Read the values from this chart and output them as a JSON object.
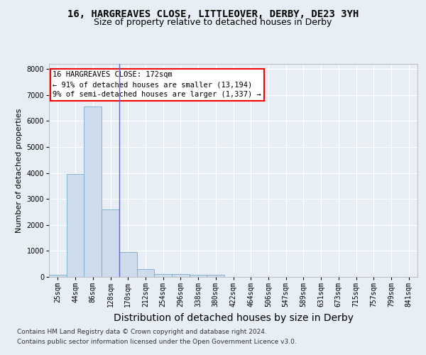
{
  "title": "16, HARGREAVES CLOSE, LITTLEOVER, DERBY, DE23 3YH",
  "subtitle": "Size of property relative to detached houses in Derby",
  "xlabel": "Distribution of detached houses by size in Derby",
  "ylabel": "Number of detached properties",
  "footnote1": "Contains HM Land Registry data © Crown copyright and database right 2024.",
  "footnote2": "Contains public sector information licensed under the Open Government Licence v3.0.",
  "annotation_line1": "16 HARGREAVES CLOSE: 172sqm",
  "annotation_line2": "← 91% of detached houses are smaller (13,194)",
  "annotation_line3": "9% of semi-detached houses are larger (1,337) →",
  "bar_color": "#ccdcec",
  "bar_edge_color": "#7aaac8",
  "vline_color": "#6666bb",
  "vline_x": 3.5,
  "bin_labels": [
    "25sqm",
    "44sqm",
    "86sqm",
    "128sqm",
    "170sqm",
    "212sqm",
    "254sqm",
    "296sqm",
    "338sqm",
    "380sqm",
    "422sqm",
    "464sqm",
    "506sqm",
    "547sqm",
    "589sqm",
    "631sqm",
    "673sqm",
    "715sqm",
    "757sqm",
    "799sqm",
    "841sqm"
  ],
  "bar_heights": [
    75,
    3950,
    6550,
    2600,
    950,
    300,
    120,
    120,
    80,
    80,
    0,
    0,
    0,
    0,
    0,
    0,
    0,
    0,
    0,
    0,
    0
  ],
  "ylim": [
    0,
    8200
  ],
  "yticks": [
    0,
    1000,
    2000,
    3000,
    4000,
    5000,
    6000,
    7000,
    8000
  ],
  "background_color": "#e8eef5",
  "plot_bg_color": "#e8eef5",
  "grid_color": "#ffffff",
  "title_fontsize": 10,
  "subtitle_fontsize": 9,
  "xlabel_fontsize": 10,
  "ylabel_fontsize": 8,
  "tick_fontsize": 7,
  "footnote_fontsize": 6.5,
  "ann_fontsize": 7.5
}
